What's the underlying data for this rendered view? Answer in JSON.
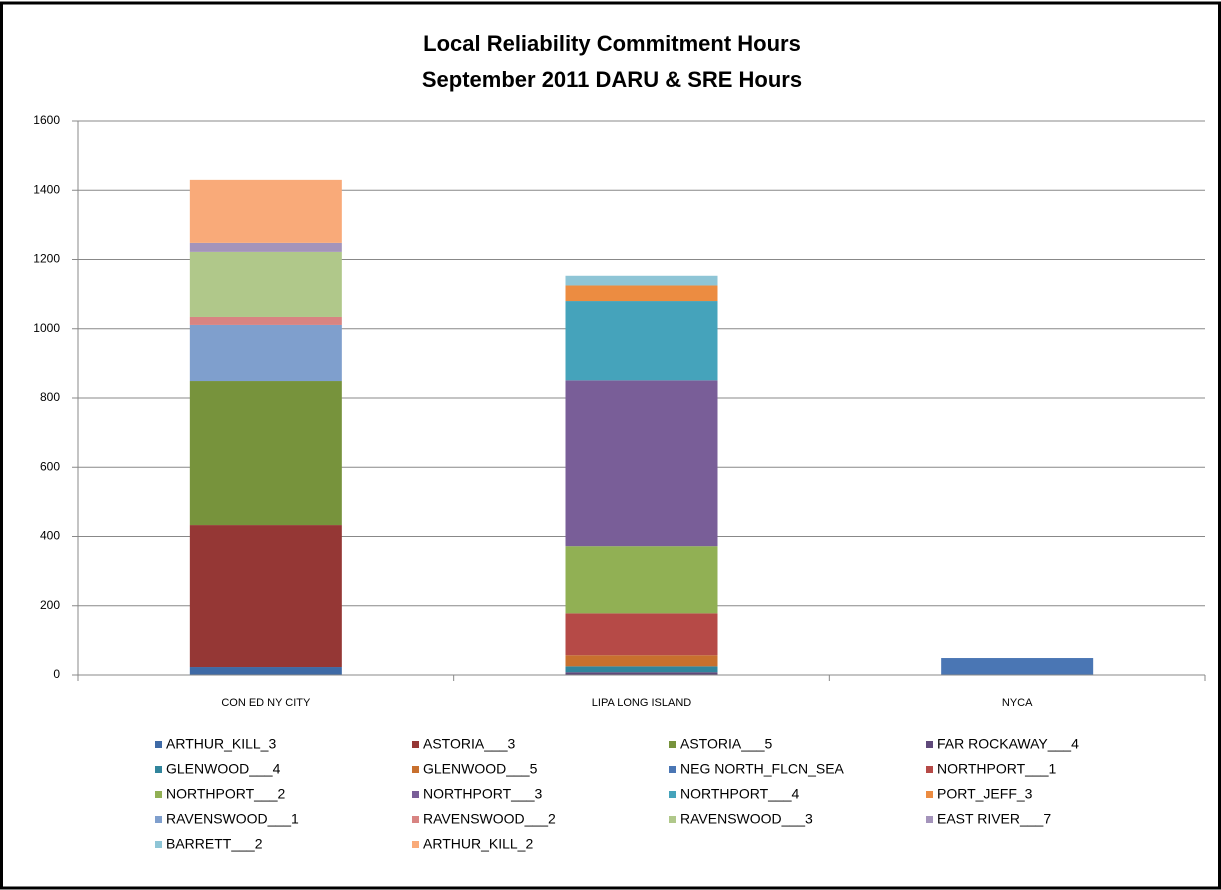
{
  "chart_data": {
    "type": "stacked_bar",
    "title": "Local Reliability Commitment Hours",
    "subtitle": "September 2011 DARU & SRE Hours",
    "categories": [
      "CON ED NY CITY",
      "LIPA LONG ISLAND",
      "NYCA"
    ],
    "ylim": [
      0,
      1600
    ],
    "yticks": [
      0,
      200,
      400,
      600,
      800,
      1000,
      1200,
      1400,
      1600
    ],
    "grid": true,
    "series": [
      {
        "name": "ARTHUR_KILL_3",
        "color": "#3e6aa6",
        "values": [
          23,
          null,
          null
        ]
      },
      {
        "name": "ASTORIA___3",
        "color": "#953735",
        "values": [
          410,
          null,
          null
        ]
      },
      {
        "name": "ASTORIA___5",
        "color": "#77933c",
        "values": [
          416,
          null,
          null
        ]
      },
      {
        "name": "FAR ROCKAWAY___4",
        "color": "#5f497a",
        "values": [
          null,
          8,
          null
        ]
      },
      {
        "name": "GLENWOOD___4",
        "color": "#31859c",
        "values": [
          null,
          17,
          null
        ]
      },
      {
        "name": "GLENWOOD___5",
        "color": "#c8702e",
        "values": [
          null,
          32,
          null
        ]
      },
      {
        "name": "NEG NORTH_FLCN_SEA",
        "color": "#4a76b4",
        "values": [
          null,
          null,
          49
        ]
      },
      {
        "name": "NORTHPORT___1",
        "color": "#b64a47",
        "values": [
          null,
          121,
          null
        ]
      },
      {
        "name": "NORTHPORT___2",
        "color": "#91b054",
        "values": [
          null,
          194,
          null
        ]
      },
      {
        "name": "NORTHPORT___3",
        "color": "#795e98",
        "values": [
          null,
          479,
          null
        ]
      },
      {
        "name": "NORTHPORT___4",
        "color": "#45a3bb",
        "values": [
          null,
          229,
          null
        ]
      },
      {
        "name": "PORT_JEFF_3",
        "color": "#ec8c41",
        "values": [
          null,
          45,
          null
        ]
      },
      {
        "name": "RAVENSWOOD___1",
        "color": "#7f9fcd",
        "values": [
          162,
          null,
          null
        ]
      },
      {
        "name": "RAVENSWOOD___2",
        "color": "#d88482",
        "values": [
          23,
          null,
          null
        ]
      },
      {
        "name": "RAVENSWOOD___3",
        "color": "#b0c88a",
        "values": [
          188,
          null,
          null
        ]
      },
      {
        "name": "EAST RIVER___7",
        "color": "#a494bb",
        "values": [
          26,
          null,
          null
        ]
      },
      {
        "name": "BARRETT___2",
        "color": "#8ec5d6",
        "values": [
          null,
          28,
          null
        ]
      },
      {
        "name": "ARTHUR_KILL_2",
        "color": "#f9aa79",
        "values": [
          182,
          null,
          null
        ]
      }
    ]
  }
}
